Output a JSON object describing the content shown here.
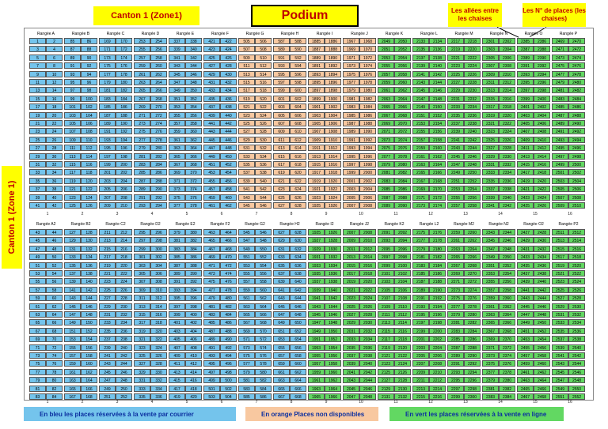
{
  "header": {
    "canton_top": "Canton 1  (Zone1)",
    "podium": "Podium",
    "note_allees": "Les allées entre les chaises",
    "note_places": "Les N° de places (les chaises)"
  },
  "side_label": "Canton 1  (Zone 1)",
  "top_block": {
    "row_labels": [
      "Rangée A",
      "Rangée B",
      "Rangée C",
      "Rangée D",
      "Rangée E",
      "Rangée F",
      "Rangée G",
      "Rangée H",
      "Rangée I",
      "Rangée J",
      "Rangée K",
      "Rangée L",
      "Rangée M",
      "Rangée N",
      "Rangée O",
      "Rangée P"
    ],
    "starts": [
      1,
      85,
      169,
      253,
      337,
      421,
      505,
      587,
      1885,
      1967,
      2049,
      2133,
      2217,
      2301,
      2385,
      2469
    ],
    "colors": [
      "b",
      "b",
      "b",
      "b",
      "b",
      "b",
      "o",
      "o",
      "o",
      "o",
      "g",
      "g",
      "g",
      "g",
      "g",
      "g"
    ],
    "lines": 21
  },
  "bottom_block": {
    "row_labels": [
      "Rangée A2",
      "Rangée B2",
      "Rangée C2",
      "Rangée D2",
      "Rangée E2",
      "Rangée F2",
      "Rangée G2",
      "Rangée H2",
      "Rangée I2",
      "Rangée J2",
      "Rangée K2",
      "Rangée L2",
      "Rangée M2",
      "Rangée N2",
      "Rangée O2",
      "Rangée P2"
    ],
    "starts": [
      43,
      127,
      211,
      295,
      379,
      463,
      545,
      627,
      1925,
      2007,
      2091,
      2175,
      2259,
      2343,
      2427,
      2511
    ],
    "colors": [
      "b",
      "b",
      "b",
      "b",
      "b",
      "b",
      "b",
      "b",
      "g",
      "g",
      "g",
      "g",
      "g",
      "g",
      "g",
      "g"
    ],
    "lines": 21
  },
  "aisles": [
    "1",
    "2",
    "3",
    "4",
    "5",
    "6",
    "7",
    "8",
    "9",
    "10",
    "11",
    "12",
    "13",
    "14",
    "15",
    "16"
  ],
  "legend": {
    "blue": "En bleu les places réservées à la vente par courrier",
    "orange": "En orange Places non disponibles",
    "green": "En vert les places réservées à la vente en ligne"
  }
}
